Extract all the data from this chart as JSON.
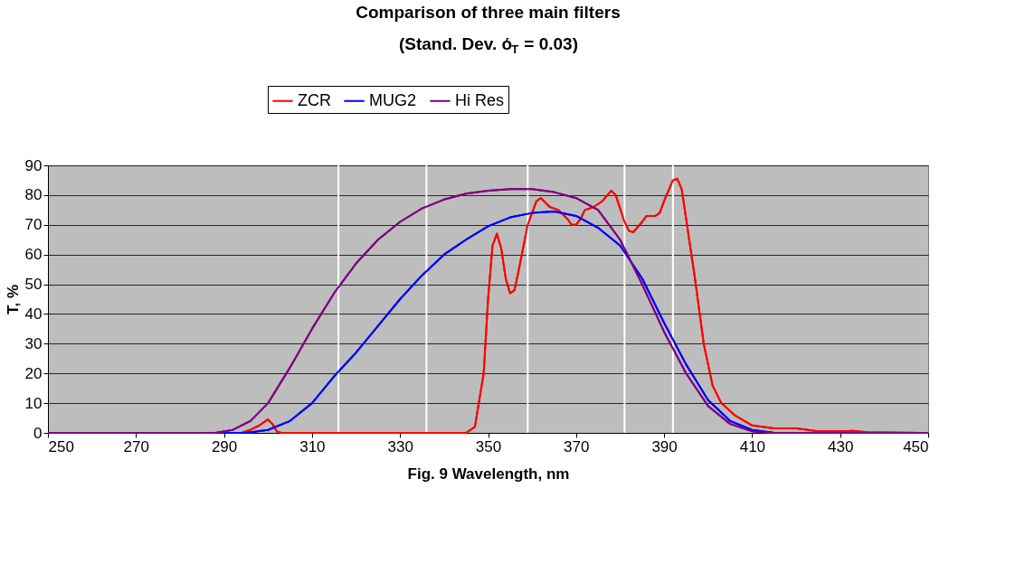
{
  "chart_data": {
    "type": "line",
    "title": "Comparison of three main filters",
    "subtitle": "(Stand. Dev. ό$_{T}$ = 0.03)",
    "xlabel": "Fig. 9     Wavelength, nm",
    "ylabel": "T, %",
    "xlim": [
      250,
      450
    ],
    "xticks": [
      250,
      270,
      290,
      310,
      330,
      350,
      370,
      390,
      410,
      430,
      450
    ],
    "ylim": [
      0,
      90
    ],
    "yticks": [
      0,
      10,
      20,
      30,
      40,
      50,
      60,
      70,
      80,
      90
    ],
    "grid": "y",
    "legend": "top",
    "marker": "none",
    "line_style": "solid",
    "ref_lines": [
      {
        "axis": "x",
        "value": 316,
        "color": "#ffffff"
      },
      {
        "axis": "x",
        "value": 336,
        "color": "#ffffff"
      },
      {
        "axis": "x",
        "value": 359,
        "color": "#ffffff"
      },
      {
        "axis": "x",
        "value": 381,
        "color": "#ffffff"
      },
      {
        "axis": "x",
        "value": 392,
        "color": "#ffffff"
      }
    ],
    "series": [
      {
        "name": "ZCR",
        "color": "#ff0000",
        "x": [
          250,
          294,
          296,
          298,
          300,
          301,
          302,
          303,
          345,
          347,
          349,
          350,
          351,
          352,
          353,
          354,
          355,
          356,
          357,
          359,
          361,
          362,
          364,
          366,
          368,
          369,
          370,
          371,
          372,
          374,
          376,
          378,
          379,
          381,
          382,
          383,
          385,
          386,
          388,
          389,
          390,
          392,
          393,
          394,
          395,
          397,
          399,
          401,
          403,
          406,
          410,
          415,
          420,
          425,
          430,
          433,
          436,
          450
        ],
        "values": [
          0,
          0,
          1,
          2.5,
          4.5,
          3,
          0.5,
          0,
          0,
          2,
          20,
          45,
          63,
          67,
          62,
          52,
          47,
          48,
          55,
          70,
          78,
          79,
          76,
          75,
          72,
          70,
          70,
          72,
          75,
          76,
          78,
          81.5,
          80,
          71,
          68,
          67.5,
          71,
          73,
          73,
          74,
          78,
          85,
          85.5,
          82,
          72,
          52,
          30,
          16,
          10,
          6,
          2.5,
          1.5,
          1.5,
          0.5,
          0.5,
          0.7,
          0.2,
          0
        ]
      },
      {
        "name": "MUG2",
        "color": "#0000ff",
        "x": [
          250,
          295,
          300,
          305,
          310,
          315,
          320,
          325,
          330,
          335,
          340,
          345,
          350,
          355,
          360,
          365,
          370,
          375,
          380,
          385,
          390,
          395,
          400,
          405,
          410,
          415,
          450
        ],
        "values": [
          0,
          0,
          1,
          4,
          10,
          19,
          27,
          36,
          45,
          53,
          60,
          65,
          69.5,
          72.5,
          74,
          74.5,
          73,
          69,
          63,
          52,
          37,
          23,
          11,
          4,
          1,
          0,
          0
        ]
      },
      {
        "name": "Hi Res",
        "color": "#800080",
        "x": [
          250,
          288,
          292,
          296,
          300,
          305,
          310,
          315,
          320,
          325,
          330,
          335,
          340,
          345,
          350,
          355,
          360,
          365,
          370,
          375,
          380,
          385,
          390,
          395,
          400,
          405,
          410,
          415,
          450
        ],
        "values": [
          0,
          0,
          1,
          4,
          10,
          22,
          35,
          47,
          57,
          65,
          71,
          75.5,
          78.5,
          80.5,
          81.5,
          82,
          82,
          81,
          79,
          75,
          65,
          50,
          34,
          20,
          9,
          3,
          0.5,
          0,
          0
        ]
      }
    ]
  }
}
